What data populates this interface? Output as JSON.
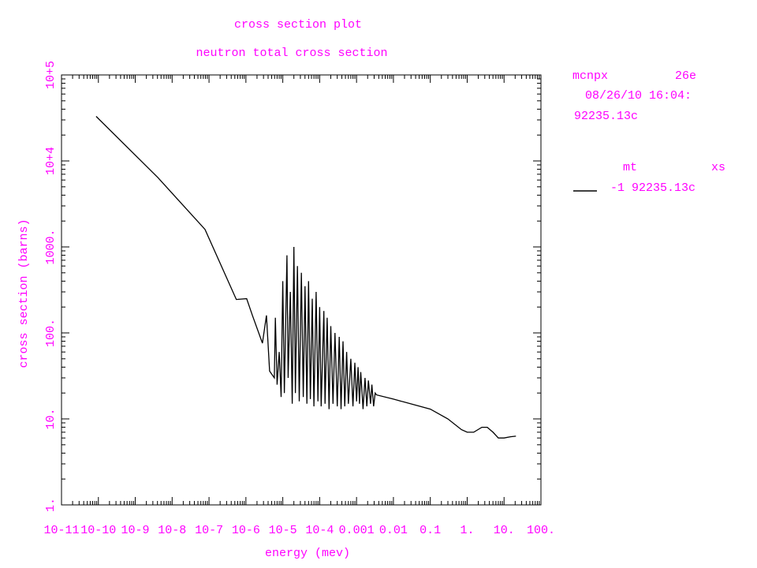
{
  "chart_data": {
    "type": "line",
    "title": "cross section plot",
    "subtitle": "neutron total cross section",
    "x_label": "energy (mev)",
    "y_label": "cross section (barns)",
    "log_x": true,
    "log_y": true,
    "xlim": [
      1e-11,
      100
    ],
    "ylim": [
      1,
      100000
    ],
    "xticks": [
      {
        "value": 1e-11,
        "label": "10-11"
      },
      {
        "value": 1e-10,
        "label": "10-10"
      },
      {
        "value": 1e-09,
        "label": "10-9"
      },
      {
        "value": 1e-08,
        "label": "10-8"
      },
      {
        "value": 1e-07,
        "label": "10-7"
      },
      {
        "value": 1e-06,
        "label": "10-6"
      },
      {
        "value": 1e-05,
        "label": "10-5"
      },
      {
        "value": 0.0001,
        "label": "10-4"
      },
      {
        "value": 0.001,
        "label": "0.001"
      },
      {
        "value": 0.01,
        "label": "0.01"
      },
      {
        "value": 0.1,
        "label": "0.1"
      },
      {
        "value": 1,
        "label": "1."
      },
      {
        "value": 10,
        "label": "10."
      },
      {
        "value": 100,
        "label": "100."
      }
    ],
    "yticks": [
      {
        "value": 1,
        "label": "1."
      },
      {
        "value": 10,
        "label": "10."
      },
      {
        "value": 100,
        "label": "100."
      },
      {
        "value": 1000,
        "label": "1000."
      },
      {
        "value": 10000,
        "label": "10+4"
      },
      {
        "value": 100000,
        "label": "10+5"
      }
    ],
    "info": [
      "mcnpx",
      "26e",
      "08/26/10 16:04:",
      "92235.13c"
    ],
    "legend_header": [
      "mt",
      "xs"
    ],
    "x": [
      8.7e-11,
      4.1e-09,
      7.8e-08,
      5.5e-07,
      1.05e-06,
      1.5e-06,
      2.8e-06,
      3.6e-06,
      4.4e-06,
      5.9e-06,
      6.3e-06,
      7e-06,
      8e-06,
      9e-06,
      1e-05,
      1.1e-05,
      1.3e-05,
      1.4e-05,
      1.6e-05,
      1.8e-05,
      2e-05,
      2.2e-05,
      2.5e-05,
      2.8e-05,
      3.2e-05,
      3.6e-05,
      4e-05,
      4.5e-05,
      5e-05,
      5.6e-05,
      6.3e-05,
      7e-05,
      8e-05,
      9e-05,
      0.0001,
      0.00011,
      0.00013,
      0.00014,
      0.00016,
      0.00018,
      0.0002,
      0.00023,
      0.00026,
      0.0003,
      0.00034,
      0.00038,
      0.00043,
      0.00048,
      0.00054,
      0.0006,
      0.0007,
      0.0008,
      0.0009,
      0.001,
      0.0011,
      0.0012,
      0.0013,
      0.0015,
      0.0017,
      0.0019,
      0.0021,
      0.0024,
      0.0026,
      0.0029,
      0.0032,
      0.0035,
      0.01,
      0.1,
      0.3,
      0.7,
      1,
      1.5,
      2.5,
      3.5,
      5,
      7,
      10,
      15,
      21
    ],
    "series": [
      {
        "name": "-1 92235.13c",
        "color": "#000000",
        "values": [
          33000,
          6400,
          1600,
          245,
          250,
          160,
          76,
          160,
          36,
          30,
          150,
          25,
          60,
          18,
          400,
          20,
          800,
          30,
          300,
          15,
          1000,
          20,
          600,
          16,
          500,
          18,
          350,
          15,
          400,
          17,
          250,
          14,
          300,
          16,
          200,
          14,
          180,
          15,
          150,
          13,
          120,
          15,
          100,
          14,
          90,
          13,
          80,
          14,
          60,
          15,
          50,
          14,
          45,
          16,
          40,
          15,
          35,
          13,
          30,
          14,
          28,
          15,
          25,
          14,
          20,
          19,
          17,
          13,
          10,
          7.5,
          7,
          7,
          8,
          8,
          7,
          6,
          6,
          6.2,
          6.3
        ]
      }
    ]
  }
}
